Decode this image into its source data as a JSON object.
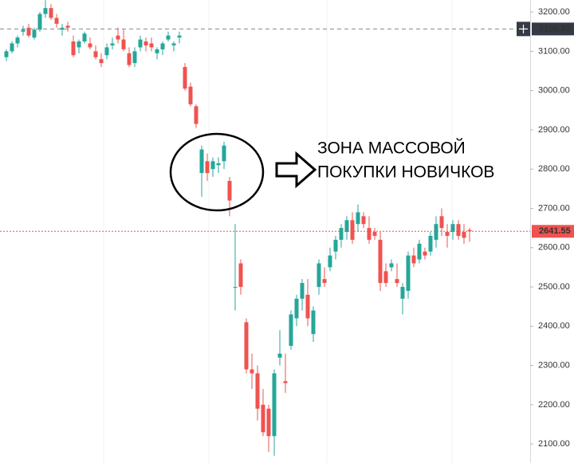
{
  "chart_data": {
    "type": "candlestick",
    "up_color": "#26a69a",
    "down_color": "#ef5350",
    "ylim": [
      2080,
      3230
    ],
    "yticks": [
      {
        "value": 2100,
        "label": "2100.00"
      },
      {
        "value": 2200,
        "label": "2200.00"
      },
      {
        "value": 2300,
        "label": "2300.00"
      },
      {
        "value": 2400,
        "label": "2400.00"
      },
      {
        "value": 2500,
        "label": "2500.00"
      },
      {
        "value": 2600,
        "label": "2600.00"
      },
      {
        "value": 2700,
        "label": "2700.00"
      },
      {
        "value": 2800,
        "label": "2800.00"
      },
      {
        "value": 2900,
        "label": "2900.00"
      },
      {
        "value": 3000,
        "label": "3000.00"
      },
      {
        "value": 3100,
        "label": "3100.00"
      },
      {
        "value": 3200,
        "label": "3200.00"
      }
    ],
    "price_lines": [
      {
        "value": 3156.83,
        "color": "#888888",
        "label_color": "#363a45"
      },
      {
        "value": 2641.55,
        "color": "#ef5350",
        "label_color": "#ef5350"
      }
    ],
    "annotations": [
      "ЗОНА МАССОВОЙ",
      "ПОКУПКИ НОВИЧКОВ"
    ],
    "open": [
      3085,
      3100,
      3120,
      3150,
      3160,
      3135,
      3155,
      3195,
      3210,
      3185,
      3155,
      3165,
      3125,
      3110,
      3125,
      3120,
      3100,
      3080,
      3090,
      3115,
      3140,
      3130,
      3095,
      3070,
      3110,
      3125,
      3120,
      3095,
      3105,
      3130,
      3115,
      3135,
      3060,
      3010,
      2960,
      2790,
      2820,
      2800,
      2810,
      2820,
      2770,
      2500,
      2560,
      2410,
      2290,
      2280,
      2200,
      2190,
      2120,
      2320,
      2260,
      2350,
      2420,
      2470,
      2480,
      2380,
      2500,
      2520,
      2550,
      2590,
      2620,
      2640,
      2670,
      2660,
      2680,
      2650,
      2640,
      2620,
      2540,
      2550,
      2520,
      2470,
      2490,
      2580,
      2570,
      2590,
      2590,
      2620,
      2680,
      2640,
      2640,
      2660,
      2640,
      2645
    ],
    "high": [
      3105,
      3125,
      3140,
      3165,
      3170,
      3160,
      3200,
      3230,
      3220,
      3195,
      3170,
      3175,
      3140,
      3130,
      3150,
      3135,
      3115,
      3095,
      3120,
      3135,
      3160,
      3155,
      3110,
      3110,
      3140,
      3135,
      3135,
      3110,
      3125,
      3150,
      3125,
      3150,
      3070,
      3020,
      2965,
      2860,
      2840,
      2830,
      2830,
      2870,
      2780,
      2660,
      2570,
      2420,
      2330,
      2300,
      2240,
      2200,
      2290,
      2390,
      2330,
      2440,
      2480,
      2520,
      2520,
      2450,
      2570,
      2550,
      2600,
      2630,
      2660,
      2680,
      2690,
      2710,
      2690,
      2680,
      2650,
      2640,
      2560,
      2570,
      2560,
      2510,
      2590,
      2600,
      2620,
      2600,
      2640,
      2680,
      2700,
      2660,
      2670,
      2670,
      2660,
      2650
    ],
    "low": [
      3075,
      3095,
      3110,
      3140,
      3135,
      3130,
      3150,
      3185,
      3180,
      3160,
      3140,
      3150,
      3085,
      3095,
      3120,
      3105,
      3080,
      3060,
      3080,
      3105,
      3120,
      3100,
      3060,
      3060,
      3100,
      3100,
      3100,
      3080,
      3090,
      3125,
      3100,
      3120,
      3000,
      2960,
      2905,
      2730,
      2770,
      2780,
      2790,
      2800,
      2680,
      2440,
      2480,
      2280,
      2240,
      2160,
      2120,
      2080,
      2070,
      2300,
      2230,
      2340,
      2400,
      2440,
      2400,
      2360,
      2480,
      2500,
      2540,
      2570,
      2600,
      2620,
      2610,
      2640,
      2650,
      2610,
      2620,
      2490,
      2500,
      2540,
      2500,
      2430,
      2470,
      2550,
      2560,
      2570,
      2580,
      2600,
      2630,
      2600,
      2620,
      2620,
      2610,
      2615
    ],
    "close": [
      3100,
      3120,
      3135,
      3155,
      3140,
      3155,
      3195,
      3210,
      3185,
      3170,
      3160,
      3160,
      3090,
      3125,
      3145,
      3110,
      3085,
      3070,
      3110,
      3120,
      3130,
      3105,
      3065,
      3100,
      3130,
      3115,
      3110,
      3105,
      3120,
      3140,
      3120,
      3140,
      3005,
      2965,
      2915,
      2850,
      2790,
      2820,
      2815,
      2860,
      2720,
      2500,
      2500,
      2290,
      2280,
      2190,
      2130,
      2120,
      2280,
      2330,
      2255,
      2430,
      2470,
      2510,
      2420,
      2440,
      2560,
      2510,
      2580,
      2620,
      2650,
      2670,
      2620,
      2690,
      2660,
      2620,
      2630,
      2510,
      2510,
      2560,
      2510,
      2500,
      2580,
      2560,
      2610,
      2580,
      2630,
      2660,
      2650,
      2630,
      2660,
      2630,
      2625,
      2641.55
    ]
  }
}
